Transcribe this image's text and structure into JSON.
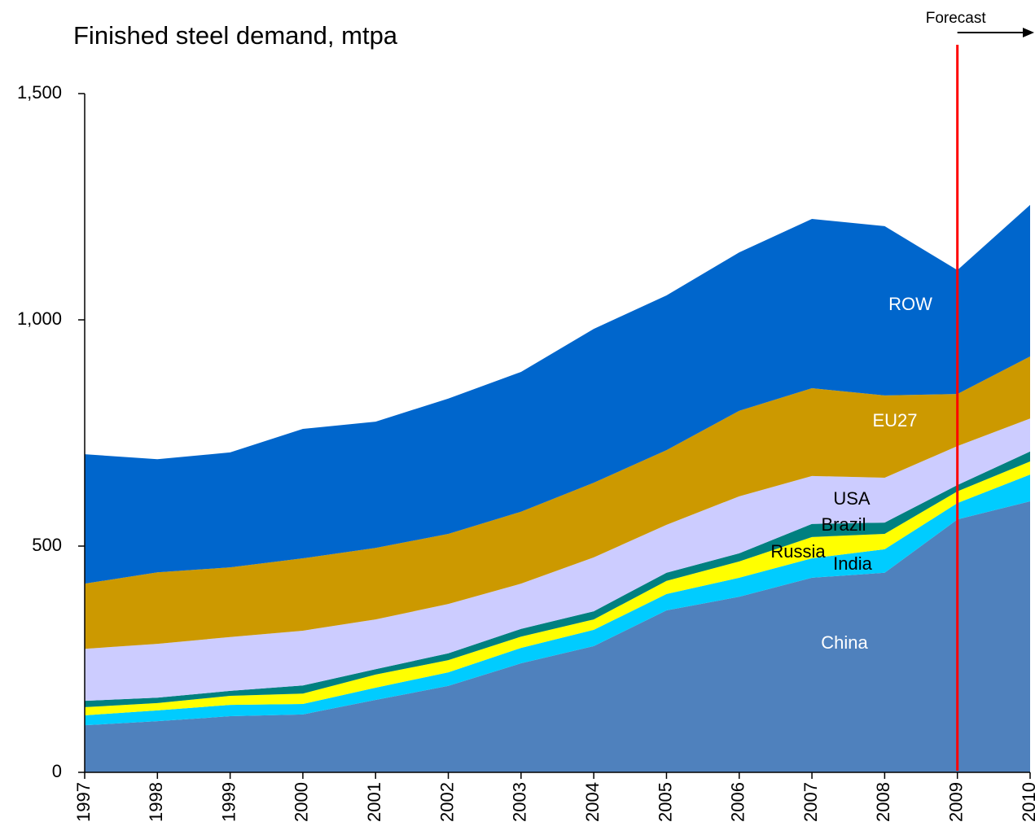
{
  "chart_data": {
    "type": "stacked_area",
    "title": "Finished steel demand, mtpa",
    "categories": [
      "1997",
      "1998",
      "1999",
      "2000",
      "2001",
      "2002",
      "2003",
      "2004",
      "2005",
      "2006",
      "2007",
      "2008",
      "2009",
      "2010"
    ],
    "series": [
      {
        "name": "China",
        "color": "#4f81bd",
        "values": [
          104,
          113,
          124,
          128,
          160,
          191,
          241,
          279,
          358,
          388,
          430,
          441,
          559,
          599
        ]
      },
      {
        "name": "India",
        "color": "#00ccff",
        "values": [
          22,
          24,
          25,
          23,
          27,
          30,
          34,
          36,
          36,
          42,
          43,
          52,
          36,
          59
        ]
      },
      {
        "name": "Russia",
        "color": "#ffff00",
        "values": [
          18,
          16,
          20,
          23,
          29,
          27,
          25,
          23,
          29,
          36,
          47,
          34,
          26,
          29
        ]
      },
      {
        "name": "Brazil",
        "color": "#008080",
        "values": [
          14,
          12,
          11,
          18,
          12,
          15,
          17,
          18,
          18,
          18,
          29,
          25,
          14,
          22
        ]
      },
      {
        "name": "USA",
        "color": "#ccccff",
        "values": [
          115,
          119,
          119,
          121,
          110,
          109,
          100,
          119,
          106,
          126,
          106,
          99,
          86,
          73
        ]
      },
      {
        "name": "EU27",
        "color": "#cc9900",
        "values": [
          144,
          158,
          154,
          160,
          158,
          155,
          159,
          165,
          165,
          189,
          194,
          182,
          115,
          137
        ]
      },
      {
        "name": "ROW",
        "color": "#0066cc",
        "values": [
          286,
          250,
          254,
          286,
          279,
          299,
          309,
          340,
          342,
          350,
          374,
          374,
          274,
          335
        ]
      }
    ],
    "ylim": [
      0,
      1500
    ],
    "yticks": [
      0,
      {
        "value": 500,
        "label": "500"
      },
      {
        "value": 1000,
        "label": "1,000"
      },
      {
        "value": 1500,
        "label": "1,500"
      }
    ],
    "annotation": {
      "text": "Forecast",
      "at": "2009",
      "color": "#ff0000"
    }
  }
}
